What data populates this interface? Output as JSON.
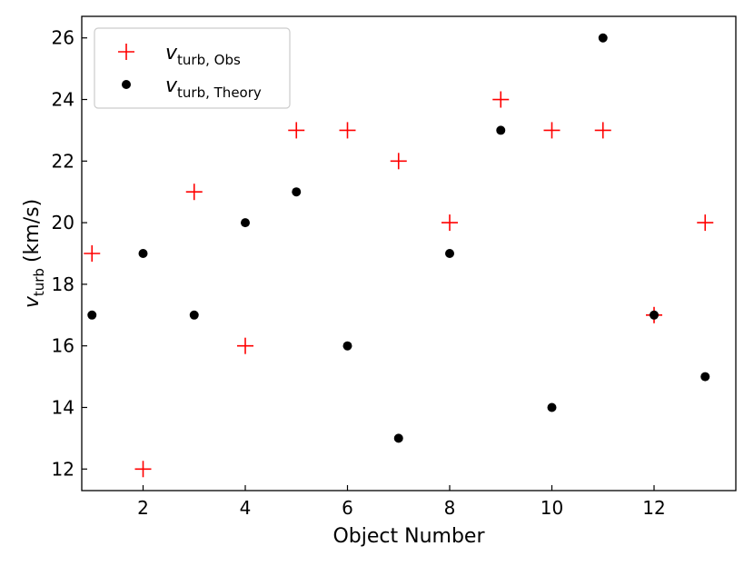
{
  "chart_data": {
    "type": "scatter",
    "xlabel": "Object Number",
    "ylabel": {
      "main": "v",
      "sub": "turb",
      "unit": "(km/s)"
    },
    "xlim": [
      0.8,
      13.6
    ],
    "ylim": [
      11.3,
      26.7
    ],
    "xticks": [
      2,
      4,
      6,
      8,
      10,
      12
    ],
    "yticks": [
      12,
      14,
      16,
      18,
      20,
      22,
      24,
      26
    ],
    "legend_position": "top-left",
    "grid": false,
    "series": [
      {
        "name": "v_turb, Obs",
        "label_main": "v",
        "label_sub": "turb, Obs",
        "marker": "plus",
        "color": "#ff0000",
        "x": [
          1,
          2,
          3,
          4,
          5,
          6,
          7,
          8,
          9,
          10,
          11,
          12,
          13
        ],
        "y": [
          19,
          12,
          21,
          16,
          23,
          23,
          22,
          20,
          24,
          23,
          23,
          17,
          20
        ]
      },
      {
        "name": "v_turb, Theory",
        "label_main": "v",
        "label_sub": "turb, Theory",
        "marker": "circle",
        "color": "#000000",
        "x": [
          1,
          2,
          3,
          4,
          5,
          6,
          7,
          8,
          9,
          10,
          11,
          12,
          13
        ],
        "y": [
          17,
          19,
          17,
          20,
          21,
          16,
          13,
          19,
          23,
          14,
          26,
          17,
          15
        ]
      }
    ]
  }
}
